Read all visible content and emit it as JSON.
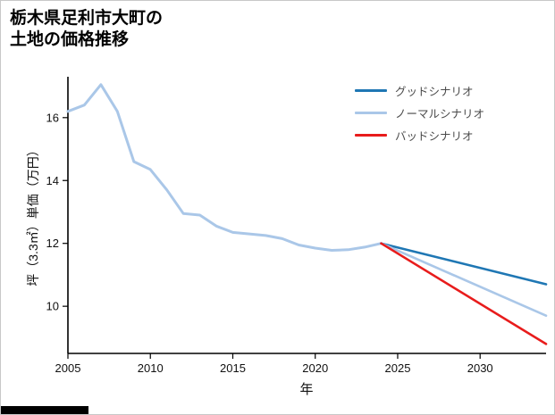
{
  "title": {
    "line1": "栃木県足利市大町の",
    "line2": "土地の価格推移"
  },
  "chart_data": {
    "type": "line",
    "title": "栃木県足利市大町の土地の価格推移",
    "xlabel": "年",
    "ylabel": "坪（3.3㎡）単価（万円）",
    "xlim": [
      2005,
      2034
    ],
    "ylim": [
      8.5,
      17.3
    ],
    "x_ticks": [
      2005,
      2010,
      2015,
      2020,
      2025,
      2030
    ],
    "y_ticks": [
      10,
      12,
      14,
      16
    ],
    "grid": false,
    "legend_position": "upper right",
    "series": [
      {
        "id": "historical",
        "color": "#aac7e8",
        "width": 3,
        "x": [
          2005,
          2006,
          2007,
          2008,
          2009,
          2010,
          2011,
          2012,
          2013,
          2014,
          2015,
          2016,
          2017,
          2018,
          2019,
          2020,
          2021,
          2022,
          2023,
          2024
        ],
        "values": [
          16.2,
          16.4,
          17.05,
          16.2,
          14.6,
          14.35,
          13.7,
          12.95,
          12.9,
          12.55,
          12.35,
          12.3,
          12.25,
          12.15,
          11.95,
          11.85,
          11.78,
          11.8,
          11.88,
          12.0
        ]
      },
      {
        "id": "good-scenario",
        "color": "#1f77b4",
        "width": 2.6,
        "x": [
          2024,
          2034
        ],
        "values": [
          12.0,
          10.7
        ]
      },
      {
        "id": "normal-scenario",
        "color": "#aac7e8",
        "width": 2.6,
        "x": [
          2024,
          2034
        ],
        "values": [
          12.0,
          9.7
        ]
      },
      {
        "id": "bad-scenario",
        "color": "#e81c1c",
        "width": 2.6,
        "x": [
          2024,
          2034
        ],
        "values": [
          12.0,
          8.8
        ]
      }
    ],
    "legend": [
      {
        "label": "グッドシナリオ",
        "color": "#1f77b4"
      },
      {
        "label": "ノーマルシナリオ",
        "color": "#aac7e8"
      },
      {
        "label": "バッドシナリオ",
        "color": "#e81c1c"
      }
    ]
  }
}
